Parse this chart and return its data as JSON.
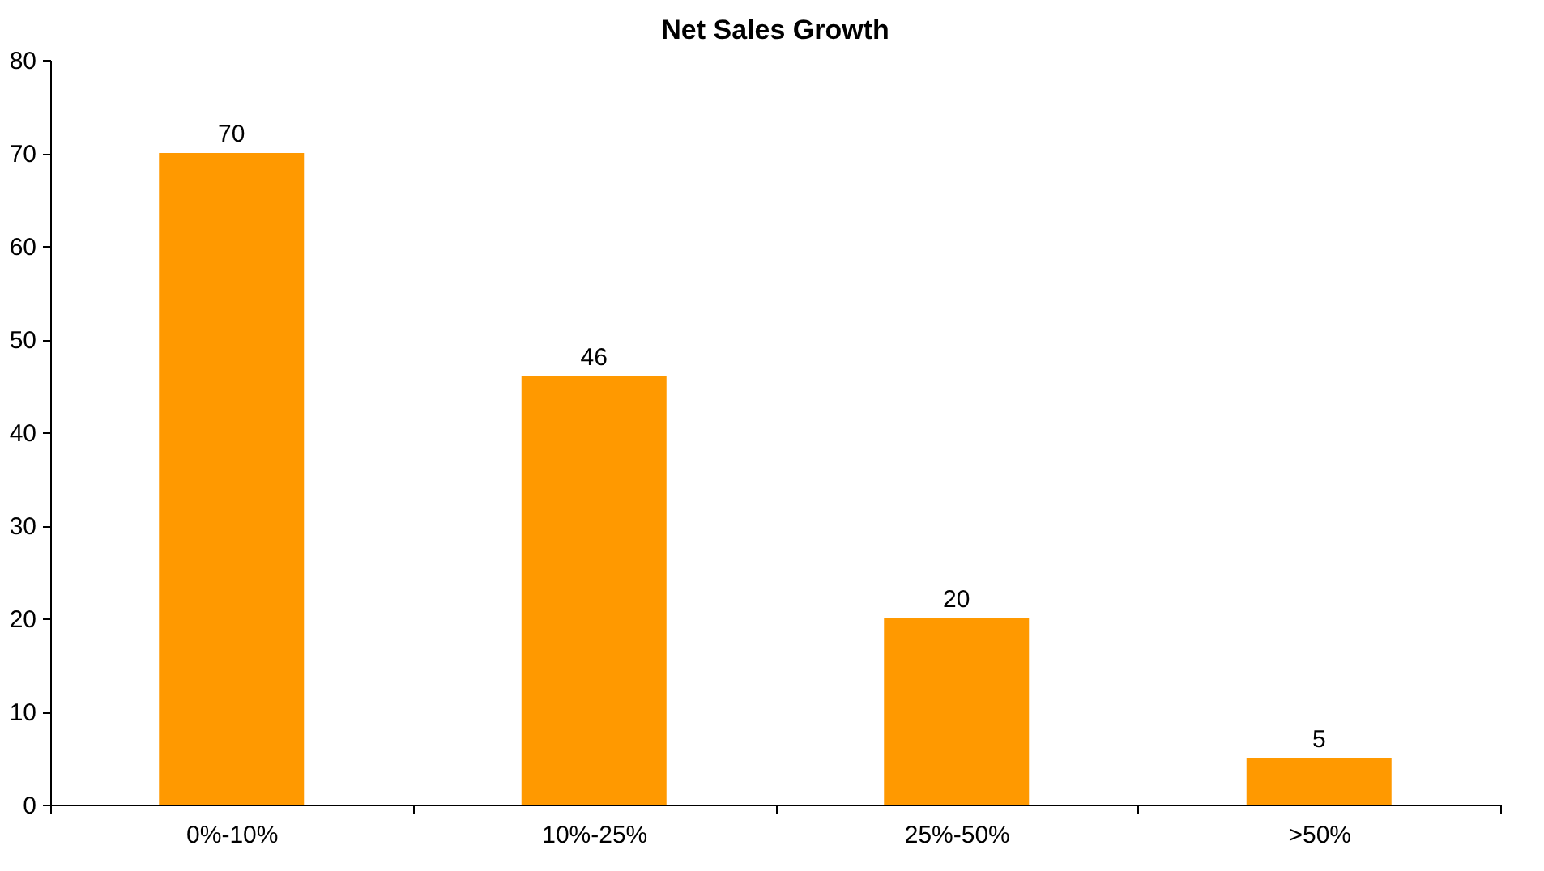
{
  "chart_data": {
    "type": "bar",
    "title": "Net Sales Growth",
    "categories": [
      "0%-10%",
      "10%-25%",
      "25%-50%",
      ">50%"
    ],
    "values": [
      70,
      46,
      20,
      5
    ],
    "color": "#ff9900",
    "ylim": [
      0,
      80
    ],
    "yticks": [
      0,
      10,
      20,
      30,
      40,
      50,
      60,
      70,
      80
    ],
    "grid": false,
    "data_labels": true
  }
}
